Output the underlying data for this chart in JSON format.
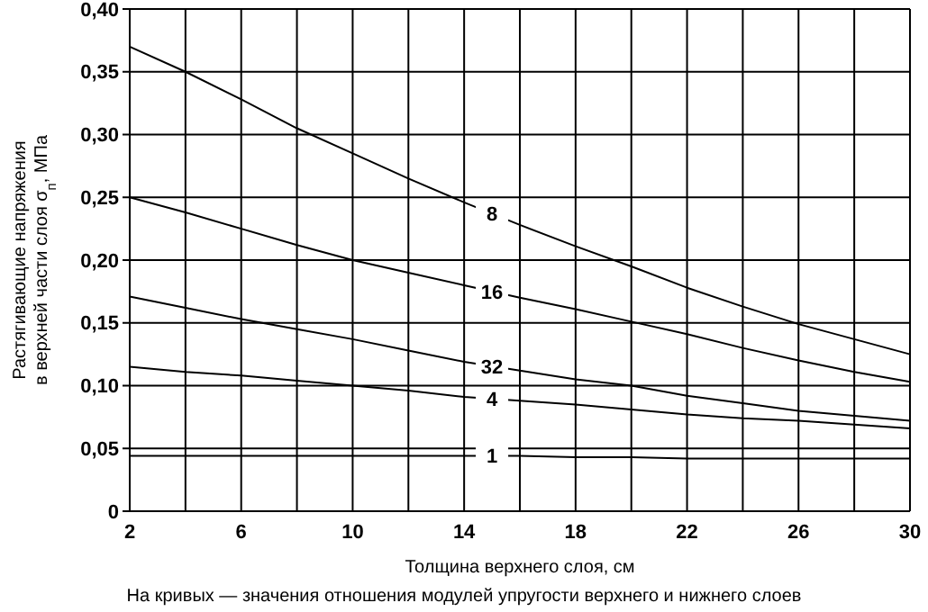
{
  "chart_data": {
    "type": "line",
    "xlabel": "Толщина верхнего слоя, см",
    "ylabel": "Растягивающие напряжения\nв верхней части слоя σ$_{п}$, МПа",
    "annotations": [
      "На кривых — значения отношения модулей упругости верхнего и нижнего слоев"
    ],
    "x": [
      2,
      4,
      6,
      8,
      10,
      12,
      14,
      16,
      18,
      20,
      22,
      24,
      26,
      28,
      30
    ],
    "series": [
      {
        "name": "8",
        "color": "#000000",
        "values": [
          0.37,
          0.35,
          0.328,
          0.305,
          0.285,
          0.265,
          0.246,
          0.228,
          0.211,
          0.195,
          0.178,
          0.163,
          0.149,
          0.137,
          0.125
        ]
      },
      {
        "name": "16",
        "color": "#000000",
        "values": [
          0.25,
          0.238,
          0.225,
          0.212,
          0.2,
          0.19,
          0.18,
          0.17,
          0.161,
          0.151,
          0.141,
          0.13,
          0.12,
          0.111,
          0.103
        ]
      },
      {
        "name": "32",
        "color": "#000000",
        "values": [
          0.171,
          0.162,
          0.153,
          0.145,
          0.137,
          0.128,
          0.119,
          0.112,
          0.105,
          0.1,
          0.092,
          0.086,
          0.08,
          0.076,
          0.072
        ]
      },
      {
        "name": "4",
        "color": "#000000",
        "values": [
          0.115,
          0.111,
          0.108,
          0.104,
          0.1,
          0.096,
          0.091,
          0.088,
          0.085,
          0.081,
          0.077,
          0.074,
          0.072,
          0.069,
          0.066
        ]
      },
      {
        "name": "1",
        "color": "#000000",
        "values": [
          0.044,
          0.044,
          0.044,
          0.044,
          0.044,
          0.044,
          0.044,
          0.044,
          0.043,
          0.043,
          0.042,
          0.042,
          0.042,
          0.042,
          0.042
        ]
      }
    ],
    "xlim": [
      2,
      30
    ],
    "ylim": [
      0,
      0.4
    ],
    "xticks": [
      2,
      {
        "value": 4,
        "label": null
      },
      6,
      {
        "value": 8,
        "label": null
      },
      10,
      {
        "value": 12,
        "label": null
      },
      14,
      {
        "value": 16,
        "label": null
      },
      18,
      {
        "value": 20,
        "label": null
      },
      22,
      {
        "value": 24,
        "label": null
      },
      26,
      {
        "value": 28,
        "label": null
      },
      30
    ],
    "yticks": [
      0,
      {
        "value": 0.05,
        "label": "0,05"
      },
      {
        "value": 0.1,
        "label": "0,10"
      },
      {
        "value": 0.15,
        "label": "0,15"
      },
      {
        "value": 0.2,
        "label": "0,20"
      },
      {
        "value": 0.25,
        "label": "0,25"
      },
      {
        "value": 0.3,
        "label": "0,30"
      },
      {
        "value": 0.35,
        "label": "0,35"
      },
      {
        "value": 0.4,
        "label": "0,40"
      }
    ],
    "grid": true,
    "line_style": "solid"
  }
}
